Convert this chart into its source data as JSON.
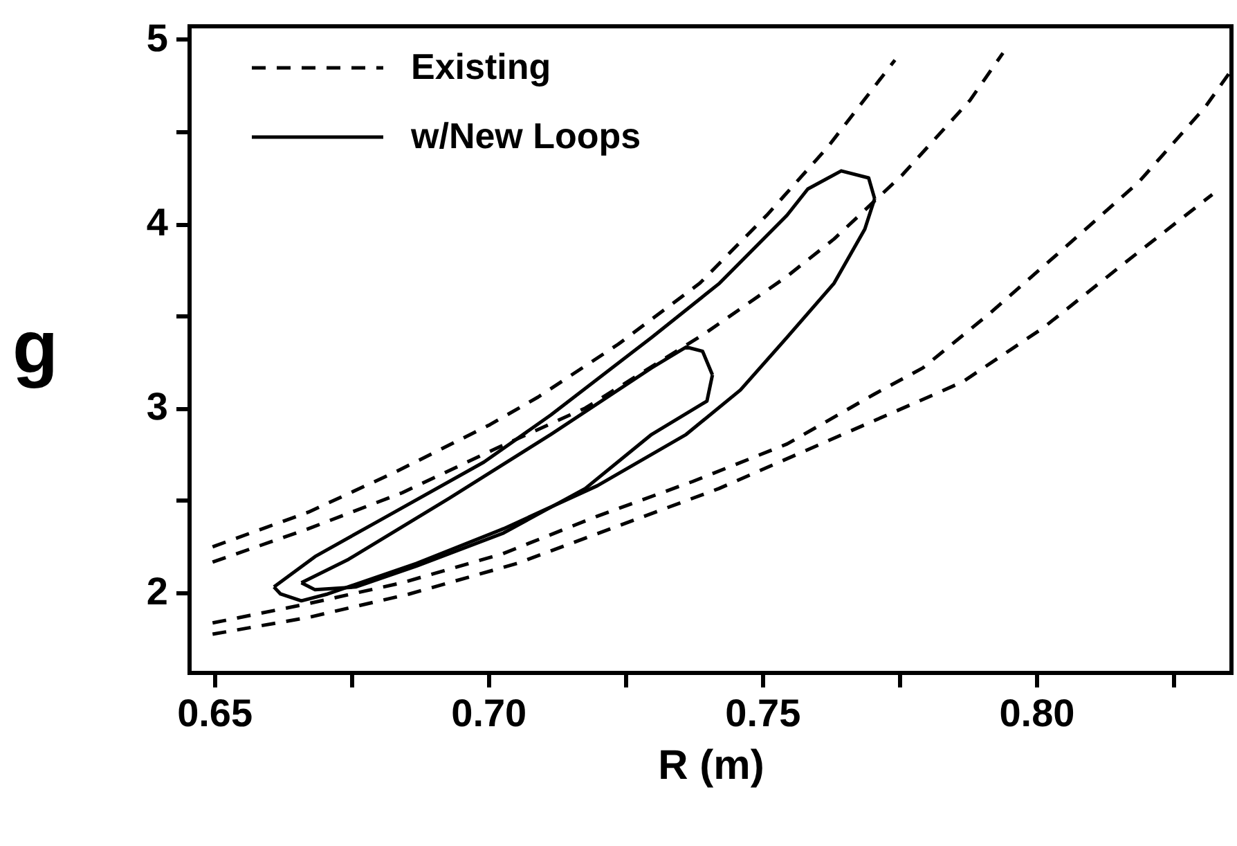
{
  "chart_data": {
    "type": "line",
    "xlabel": "R (m)",
    "ylabel": "g",
    "xlim": [
      0.6455,
      0.8356
    ],
    "ylim": [
      1.564,
      5.07
    ],
    "xticks": [
      0.65,
      {
        "value": 0.675,
        "label": null
      },
      {
        "value": 0.7,
        "label": "0.70"
      },
      {
        "value": 0.725,
        "label": null
      },
      0.75,
      {
        "value": 0.775,
        "label": null
      },
      {
        "value": 0.8,
        "label": "0.80"
      },
      {
        "value": 0.825,
        "label": null
      }
    ],
    "yticks": [
      2,
      {
        "value": 2.5,
        "label": null
      },
      3,
      {
        "value": 3.5,
        "label": null
      },
      4,
      {
        "value": 4.5,
        "label": null
      },
      5
    ],
    "grid": false,
    "legend": "top left",
    "marker": "none",
    "series": [
      {
        "name": "Existing",
        "color": "#000000",
        "line_style": "dashed",
        "x": [
          0.6497,
          0.6672,
          0.6831,
          0.7003,
          0.7091,
          0.7237,
          0.7386,
          0.7508,
          0.7619,
          0.7742
        ],
        "values": [
          2.248,
          2.436,
          2.654,
          2.91,
          3.06,
          3.346,
          3.677,
          4.045,
          4.414,
          4.887
        ]
      },
      {
        "color": "#000000",
        "line_style": "dashed",
        "x": [
          0.6497,
          0.6672,
          0.6843,
          0.7015,
          0.7177,
          0.7396,
          0.7545,
          0.7631,
          0.7755,
          0.7879,
          0.7939
        ],
        "values": [
          2.165,
          2.346,
          2.541,
          2.782,
          3.0,
          3.406,
          3.714,
          3.917,
          4.263,
          4.669,
          4.925
        ]
      },
      {
        "color": "#000000",
        "line_style": "dashed",
        "x": [
          0.6497,
          0.6672,
          0.6843,
          0.7027,
          0.7199,
          0.7373,
          0.7545,
          0.7704,
          0.7793,
          0.7914,
          0.805,
          0.8187,
          0.8308,
          0.8351
        ],
        "values": [
          1.835,
          1.94,
          2.053,
          2.211,
          2.414,
          2.602,
          2.805,
          3.075,
          3.218,
          3.511,
          3.865,
          4.226,
          4.632,
          4.812
        ]
      },
      {
        "color": "#000000",
        "line_style": "dashed",
        "x": [
          0.6497,
          0.6672,
          0.6856,
          0.7053,
          0.7237,
          0.7421,
          0.7618,
          0.7803,
          0.7866,
          0.8013,
          0.8162,
          0.8321
        ],
        "values": [
          1.774,
          1.865,
          1.992,
          2.158,
          2.361,
          2.564,
          2.82,
          3.06,
          3.143,
          3.436,
          3.789,
          4.158
        ]
      },
      {
        "name": "w/New Loops",
        "color": "#000000",
        "line_style": "solid",
        "x": [
          0.6609,
          0.6684,
          0.6806,
          0.6992,
          0.7114,
          0.7298,
          0.7422,
          0.7545,
          0.7583,
          0.7644,
          0.7694,
          0.7705
        ],
        "values": [
          2.03,
          2.195,
          2.398,
          2.707,
          2.962,
          3.383,
          3.677,
          4.045,
          4.188,
          4.286,
          4.248,
          4.135
        ]
      },
      {
        "color": "#000000",
        "line_style": "solid",
        "x": [
          0.6609,
          0.6621,
          0.6659,
          0.6707,
          0.6869,
          0.7028,
          0.7199,
          0.7361,
          0.746,
          0.7545,
          0.7631,
          0.7687,
          0.7705
        ],
        "values": [
          2.03,
          1.992,
          1.955,
          1.992,
          2.158,
          2.346,
          2.579,
          2.857,
          3.098,
          3.383,
          3.677,
          3.97,
          4.135
        ]
      },
      {
        "color": "#000000",
        "line_style": "solid",
        "x": [
          0.6659,
          0.6745,
          0.6929,
          0.7114,
          0.7298,
          0.7361,
          0.7391,
          0.7409
        ],
        "values": [
          2.053,
          2.18,
          2.511,
          2.857,
          3.218,
          3.331,
          3.308,
          3.18
        ]
      },
      {
        "color": "#000000",
        "line_style": "solid",
        "x": [
          0.6659,
          0.6684,
          0.6758,
          0.6869,
          0.7028,
          0.7177,
          0.7298,
          0.7399,
          0.7409
        ],
        "values": [
          2.053,
          2.015,
          2.03,
          2.143,
          2.323,
          2.564,
          2.857,
          3.038,
          3.18
        ]
      }
    ]
  }
}
